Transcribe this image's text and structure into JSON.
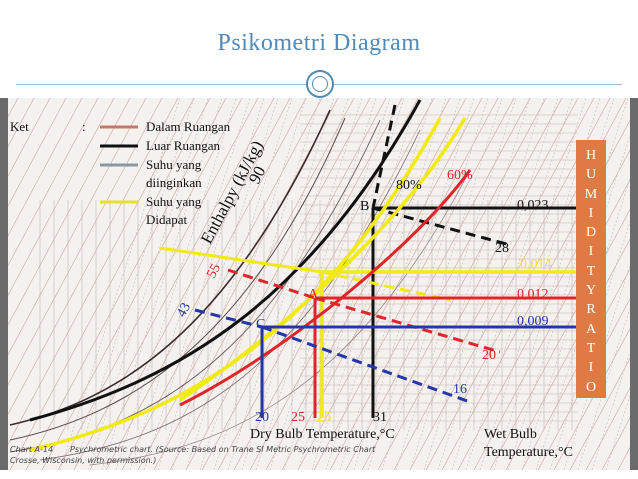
{
  "title": "Psikometri Diagram",
  "legend": {
    "key_label": "Ket",
    "colon": ":",
    "items": [
      {
        "label": "Dalam Ruangan",
        "color": "#c87a6a"
      },
      {
        "label": "Luar Ruangan",
        "color": "#111111"
      },
      {
        "label": "Suhu yang",
        "label2": "diinginkan",
        "color": "#8a98a6"
      },
      {
        "label": "Suhu yang",
        "label2": "Didapat",
        "color": "#e7e030"
      }
    ]
  },
  "side_label_letters": [
    "H",
    "U",
    "M",
    "I",
    "D",
    "I",
    "T",
    "Y",
    "R",
    "A",
    "T",
    "I",
    "O"
  ],
  "axis": {
    "dry_bulb": "Dry Bulb Temperature,°C",
    "wet_bulb_line1": "Wet Bulb",
    "wet_bulb_line2": "Temperature,°C",
    "enthalpy": "Enthalpy (kJ/kg)"
  },
  "colors": {
    "red": "#e0252a",
    "black": "#111111",
    "blue": "#2437a8",
    "yellow": "#f2ea15",
    "side": "#e07a45"
  },
  "annotations": [
    {
      "id": "rh80",
      "text": "80%",
      "color": "#111111"
    },
    {
      "id": "rh60",
      "text": "60%",
      "color": "#e0252a"
    },
    {
      "id": "ent90",
      "text": "90",
      "color": "#111111"
    },
    {
      "id": "ent55",
      "text": "55",
      "color": "#e0252a"
    },
    {
      "id": "ent43",
      "text": "43",
      "color": "#2437a8"
    },
    {
      "id": "ptB",
      "text": "B",
      "color": "#111111"
    },
    {
      "id": "ptA",
      "text": "A",
      "color": "#e0252a"
    },
    {
      "id": "ptC",
      "text": "C",
      "color": "#2437a8"
    },
    {
      "id": "hr023",
      "text": "0,023",
      "color": "#111111"
    },
    {
      "id": "hr014",
      "text": "0,014",
      "color": "#f2ea15"
    },
    {
      "id": "hr012",
      "text": "0,012",
      "color": "#e0252a"
    },
    {
      "id": "hr009",
      "text": "0,009",
      "color": "#2437a8"
    },
    {
      "id": "wb28",
      "text": "28",
      "color": "#111111"
    },
    {
      "id": "wb20",
      "text": "20",
      "color": "#e0252a"
    },
    {
      "id": "wb16",
      "text": "16",
      "color": "#2437a8"
    },
    {
      "id": "db20",
      "text": "20",
      "color": "#2437a8"
    },
    {
      "id": "db25",
      "text": "25",
      "color": "#e0252a"
    },
    {
      "id": "db26",
      "text": "26",
      "color": "#f2ea15"
    },
    {
      "id": "db31",
      "text": "31",
      "color": "#111111"
    }
  ],
  "footer": {
    "chart_name": "Chart A-14",
    "source_line1": "Psychrometric chart. (Source: Based on Trane SI Metric Psychrometric Chart",
    "source_line2": "Crosse, Wisconsin, with permission.)"
  }
}
